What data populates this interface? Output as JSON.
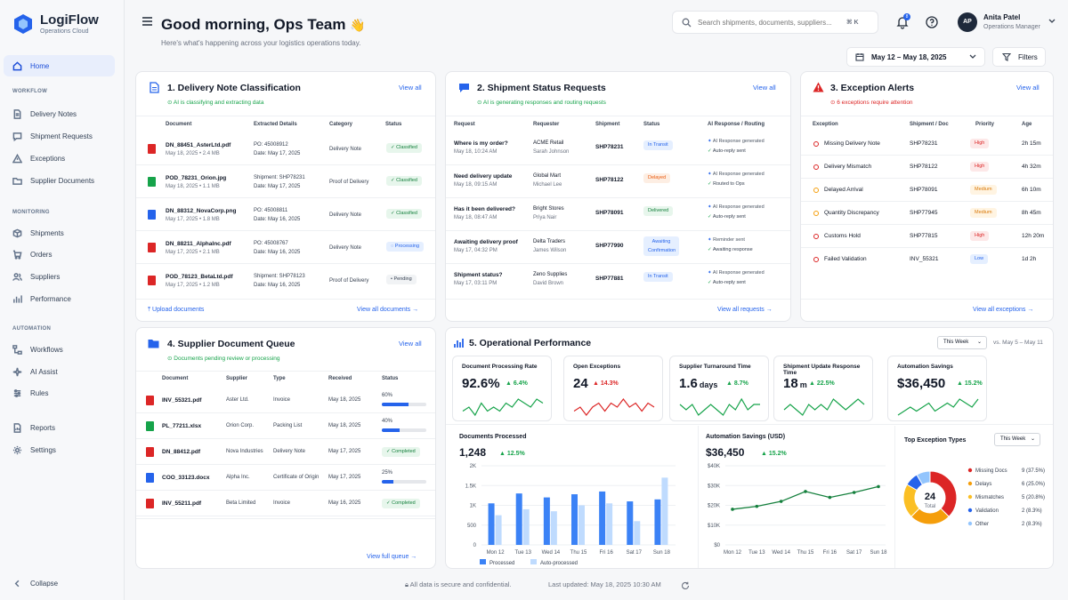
{
  "app": {
    "name": "LogiFlow",
    "subtitle": "Operations Cloud"
  },
  "sidebar": {
    "home": "Home",
    "workflow_label": "WORKFLOW",
    "workflow": [
      "Delivery Notes",
      "Shipment Requests",
      "Exceptions",
      "Supplier Documents"
    ],
    "monitoring_label": "MONITORING",
    "monitoring": [
      "Shipments",
      "Orders",
      "Suppliers",
      "Performance"
    ],
    "automation_label": "AUTOMATION",
    "automation": [
      "Workflows",
      "AI Assist",
      "Rules"
    ],
    "bottom": [
      "Reports",
      "Settings"
    ],
    "collapse": "Collapse"
  },
  "header": {
    "greeting": "Good morning, Ops Team",
    "wave": "👋",
    "subtitle": "Here's what's happening across your logistics operations today.",
    "search_placeholder": "Search shipments, documents, suppliers...",
    "search_shortcut": "⌘ K",
    "notif_count": "8",
    "user_initials": "AP",
    "user_name": "Anita Patel",
    "user_role": "Operations Manager",
    "date_range": "May 12 – May 18, 2025",
    "filters": "Filters"
  },
  "delivery": {
    "title": "1. Delivery Note Classification",
    "sub": "AI is classifying and extracting data",
    "view_all": "View all",
    "headers": [
      "Document",
      "Extracted Details",
      "Category",
      "Status"
    ],
    "rows": [
      {
        "name": "DN_88451_AsterLtd.pdf",
        "meta": "May 18, 2025  •  2.4 MB",
        "d1": "PO: 45008912",
        "d2": "Date: May 17, 2025",
        "cat": "Delivery Note",
        "status": "Classified",
        "type": "pdf",
        "tone": "green"
      },
      {
        "name": "POD_78231_Orion.jpg",
        "meta": "May 18, 2025  •  1.1 MB",
        "d1": "Shipment: SHP78231",
        "d2": "Date: May 17, 2025",
        "cat": "Proof of Delivery",
        "status": "Classified",
        "type": "img",
        "tone": "green"
      },
      {
        "name": "DN_88312_NovaCorp.png",
        "meta": "May 17, 2025  •  1.8 MB",
        "d1": "PO: 45008811",
        "d2": "Date: May 16, 2025",
        "cat": "Delivery Note",
        "status": "Classified",
        "type": "png",
        "tone": "green"
      },
      {
        "name": "DN_88211_AlphaInc.pdf",
        "meta": "May 17, 2025  •  2.1 MB",
        "d1": "PO: 45008767",
        "d2": "Date: May 16, 2025",
        "cat": "Delivery Note",
        "status": "Processing",
        "type": "pdf",
        "tone": "blue"
      },
      {
        "name": "POD_78123_BetaLtd.pdf",
        "meta": "May 17, 2025  •  1.2 MB",
        "d1": "Shipment: SHP78123",
        "d2": "Date: May 16, 2025",
        "cat": "Proof of Delivery",
        "status": "Pending",
        "type": "pdf",
        "tone": "gray"
      }
    ],
    "upload": "Upload documents",
    "view_docs": "View all documents"
  },
  "shipment": {
    "title": "2. Shipment Status Requests",
    "sub": "AI is generating responses and routing requests",
    "view_all": "View all",
    "headers": [
      "Request",
      "Requester",
      "Shipment",
      "Status",
      "AI Response / Routing"
    ],
    "rows": [
      {
        "q": "Where is my order?",
        "t": "May 18, 10:24 AM",
        "co": "ACME Retail",
        "who": "Sarah Johnson",
        "shp": "SHP78231",
        "status": "In Transit",
        "tone": "blue",
        "r1": "AI Response generated",
        "r2": "Auto-reply sent"
      },
      {
        "q": "Need delivery update",
        "t": "May 18, 09:15 AM",
        "co": "Global Mart",
        "who": "Michael Lee",
        "shp": "SHP78122",
        "status": "Delayed",
        "tone": "orange",
        "r1": "AI Response generated",
        "r2": "Routed to Ops"
      },
      {
        "q": "Has it been delivered?",
        "t": "May 18, 08:47 AM",
        "co": "Bright Stores",
        "who": "Priya Nair",
        "shp": "SHP78091",
        "status": "Delivered",
        "tone": "green",
        "r1": "AI Response generated",
        "r2": "Auto-reply sent"
      },
      {
        "q": "Awaiting delivery proof",
        "t": "May 17, 04:32 PM",
        "co": "Delta Traders",
        "who": "James Wilson",
        "shp": "SHP77990",
        "status": "Awaiting Confirmation",
        "tone": "blue",
        "r1": "Reminder sent",
        "r2": "Awaiting response"
      },
      {
        "q": "Shipment status?",
        "t": "May 17, 03:11 PM",
        "co": "Zeno Supplies",
        "who": "David Brown",
        "shp": "SHP77881",
        "status": "In Transit",
        "tone": "blue",
        "r1": "AI Response generated",
        "r2": "Auto-reply sent"
      }
    ],
    "view_req": "View all requests"
  },
  "exceptions": {
    "title": "3. Exception Alerts",
    "sub": "6 exceptions require attention",
    "view_all": "View all",
    "headers": [
      "Exception",
      "Shipment / Doc",
      "Priority",
      "Age"
    ],
    "rows": [
      {
        "name": "Missing Delivery Note",
        "doc": "SHP78231",
        "pri": "High",
        "age": "2h 15m",
        "color": "#dc2626",
        "tone": "red"
      },
      {
        "name": "Delivery Mismatch",
        "doc": "SHP78122",
        "pri": "High",
        "age": "4h 32m",
        "color": "#dc2626",
        "tone": "red"
      },
      {
        "name": "Delayed Arrival",
        "doc": "SHP78091",
        "pri": "Medium",
        "age": "6h 10m",
        "color": "#f59e0b",
        "tone": "yellow"
      },
      {
        "name": "Quantity Discrepancy",
        "doc": "SHP77945",
        "pri": "Medium",
        "age": "8h 45m",
        "color": "#f59e0b",
        "tone": "yellow"
      },
      {
        "name": "Customs Hold",
        "doc": "SHP77815",
        "pri": "High",
        "age": "12h 20m",
        "color": "#dc2626",
        "tone": "red"
      },
      {
        "name": "Failed Validation",
        "doc": "INV_55321",
        "pri": "Low",
        "age": "1d 2h",
        "color": "#dc2626",
        "tone": "blue"
      }
    ],
    "view_exc": "View all exceptions"
  },
  "supplier": {
    "title": "4. Supplier Document Queue",
    "sub": "Documents pending review or processing",
    "view_all": "View all",
    "headers": [
      "Document",
      "Supplier",
      "Type",
      "Received",
      "Status"
    ],
    "rows": [
      {
        "name": "INV_55321.pdf",
        "sup": "Aster Ltd.",
        "type": "Invoice",
        "rec": "May 18, 2025",
        "pct": "60%",
        "progress": 0.6,
        "ftype": "pdf"
      },
      {
        "name": "PL_77211.xlsx",
        "sup": "Orion Corp.",
        "type": "Packing List",
        "rec": "May 18, 2025",
        "pct": "40%",
        "progress": 0.4,
        "ftype": "xls"
      },
      {
        "name": "DN_88412.pdf",
        "sup": "Nova Industries",
        "type": "Delivery Note",
        "rec": "May 17, 2025",
        "status": "Completed",
        "ftype": "pdf"
      },
      {
        "name": "COO_33123.docx",
        "sup": "Alpha Inc.",
        "type": "Certificate of Origin",
        "rec": "May 17, 2025",
        "pct": "25%",
        "progress": 0.25,
        "ftype": "doc"
      },
      {
        "name": "INV_55211.pdf",
        "sup": "Beta Limited",
        "type": "Invoice",
        "rec": "May 16, 2025",
        "status": "Completed",
        "ftype": "pdf"
      }
    ],
    "view_queue": "View full queue"
  },
  "perf": {
    "title": "5. Operational Performance",
    "period": "This Week",
    "compare": "vs. May 5 – May 11",
    "kpis": [
      {
        "title": "Document Processing Rate",
        "value": "92.6%",
        "unit": "",
        "delta": "6.4%",
        "dir": "up",
        "color": "#16a34a",
        "spark": [
          5,
          6,
          4,
          7,
          5,
          6,
          5,
          7,
          6,
          8,
          7,
          6,
          8,
          7
        ]
      },
      {
        "title": "Open Exceptions",
        "value": "24",
        "unit": "",
        "delta": "14.3%",
        "dir": "up",
        "color": "#dc2626",
        "spark": [
          4,
          5,
          3,
          5,
          6,
          4,
          6,
          5,
          7,
          5,
          6,
          4,
          6,
          5
        ]
      },
      {
        "title": "Supplier Turnaround Time",
        "value": "1.6",
        "unit": "days",
        "delta": "8.7%",
        "dir": "up",
        "color": "#16a34a",
        "spark": [
          6,
          5,
          6,
          4,
          5,
          6,
          5,
          4,
          6,
          5,
          7,
          5,
          6,
          6
        ]
      },
      {
        "title": "Shipment Update Response Time",
        "value": "18",
        "unit": "m",
        "delta": "22.5%",
        "dir": "up",
        "color": "#16a34a",
        "spark": [
          5,
          6,
          5,
          4,
          6,
          5,
          6,
          5,
          7,
          6,
          5,
          6,
          7,
          6
        ]
      },
      {
        "title": "Automation Savings",
        "value": "$36,450",
        "unit": "",
        "delta": "15.2%",
        "dir": "up",
        "color": "#16a34a",
        "spark": [
          4,
          5,
          6,
          5,
          6,
          7,
          5,
          6,
          7,
          6,
          8,
          7,
          6,
          8
        ]
      }
    ]
  },
  "chart_data": [
    {
      "type": "bar",
      "title": "Documents Processed",
      "headline": "1,248",
      "delta": "12.5%",
      "categories": [
        "Mon 12",
        "Tue 13",
        "Wed 14",
        "Thu 15",
        "Fri 16",
        "Sat 17",
        "Sun 18"
      ],
      "series": [
        {
          "name": "Processed",
          "values": [
            1050,
            1300,
            1200,
            1280,
            1350,
            1100,
            1150
          ]
        },
        {
          "name": "Auto-processed",
          "values": [
            750,
            900,
            850,
            1000,
            1050,
            600,
            1700
          ]
        }
      ],
      "yticks": [
        "0",
        "500",
        "1K",
        "1.5K",
        "2K"
      ],
      "ylim": [
        0,
        2000
      ]
    },
    {
      "type": "line",
      "title": "Automation Savings (USD)",
      "headline": "$36,450",
      "delta": "15.2%",
      "categories": [
        "Mon 12",
        "Tue 13",
        "Wed 14",
        "Thu 15",
        "Fri 16",
        "Sat 17",
        "Sun 18"
      ],
      "values": [
        18000,
        19500,
        22000,
        27000,
        24000,
        26500,
        29500
      ],
      "yticks": [
        "$0",
        "$10K",
        "$20K",
        "$30K",
        "$40K"
      ],
      "ylim": [
        0,
        40000
      ]
    },
    {
      "type": "pie",
      "title": "Top Exception Types",
      "period": "This Week",
      "total": "24",
      "total_label": "Total",
      "slices": [
        {
          "name": "Missing Docs",
          "value": 9,
          "label": "9 (37.5%)",
          "color": "#dc2626"
        },
        {
          "name": "Delays",
          "value": 6,
          "label": "6 (25.0%)",
          "color": "#f59e0b"
        },
        {
          "name": "Mismatches",
          "value": 5,
          "label": "5 (20.8%)",
          "color": "#fbbf24"
        },
        {
          "name": "Validation",
          "value": 2,
          "label": "2 (8.3%)",
          "color": "#2563eb"
        },
        {
          "name": "Other",
          "value": 2,
          "label": "2 (8.3%)",
          "color": "#93c5fd"
        }
      ]
    }
  ],
  "footer": {
    "secure": "All data is secure and confidential.",
    "updated": "Last updated: May 18, 2025 10:30 AM"
  },
  "colors": {
    "accent": "#2563eb",
    "success": "#16a34a",
    "danger": "#dc2626",
    "warning": "#f59e0b"
  }
}
